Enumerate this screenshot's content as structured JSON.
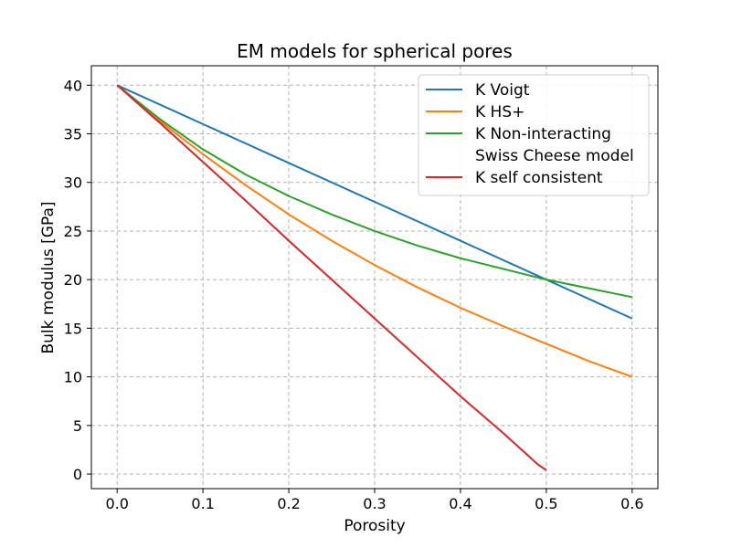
{
  "chart_data": {
    "type": "line",
    "title": "EM models for spherical pores",
    "xlabel": "Porosity",
    "ylabel": "Bulk modulus [GPa]",
    "xlim": [
      -0.03,
      0.63
    ],
    "ylim": [
      -1.5,
      42
    ],
    "xticks": [
      0.0,
      0.1,
      0.2,
      0.3,
      0.4,
      0.5,
      0.6
    ],
    "xtick_labels": [
      "0.0",
      "0.1",
      "0.2",
      "0.3",
      "0.4",
      "0.5",
      "0.6"
    ],
    "yticks": [
      0,
      5,
      10,
      15,
      20,
      25,
      30,
      35,
      40
    ],
    "ytick_labels": [
      "0",
      "5",
      "10",
      "15",
      "20",
      "25",
      "30",
      "35",
      "40"
    ],
    "grid": true,
    "legend_position": "top-right",
    "series": [
      {
        "name": "K Voigt",
        "color": "#1f77b4",
        "x": [
          0.0,
          0.1,
          0.2,
          0.3,
          0.4,
          0.5,
          0.6
        ],
        "y": [
          40.0,
          36.0,
          32.0,
          28.0,
          24.0,
          20.0,
          16.0
        ]
      },
      {
        "name": "K HS+",
        "color": "#ff7f0e",
        "x": [
          0.0,
          0.05,
          0.1,
          0.15,
          0.2,
          0.25,
          0.3,
          0.35,
          0.4,
          0.45,
          0.5,
          0.55,
          0.6
        ],
        "y": [
          40.0,
          36.3,
          32.9,
          29.7,
          26.7,
          24.0,
          21.5,
          19.2,
          17.1,
          15.2,
          13.4,
          11.6,
          10.0
        ]
      },
      {
        "name": "K Non-interacting\nSwiss Cheese model",
        "color": "#2ca02c",
        "x": [
          0.0,
          0.05,
          0.1,
          0.15,
          0.2,
          0.25,
          0.3,
          0.35,
          0.4,
          0.45,
          0.5,
          0.55,
          0.6
        ],
        "y": [
          40.0,
          36.5,
          33.4,
          30.8,
          28.6,
          26.7,
          25.0,
          23.5,
          22.2,
          21.1,
          20.0,
          19.1,
          18.2
        ]
      },
      {
        "name": "K self consistent",
        "color": "#d62728",
        "x": [
          0.0,
          0.05,
          0.1,
          0.15,
          0.2,
          0.25,
          0.3,
          0.35,
          0.4,
          0.45,
          0.47,
          0.49,
          0.5
        ],
        "y": [
          40.0,
          36.1,
          32.1,
          28.1,
          24.0,
          20.0,
          16.0,
          12.0,
          8.0,
          4.2,
          2.6,
          1.0,
          0.4
        ]
      }
    ]
  }
}
